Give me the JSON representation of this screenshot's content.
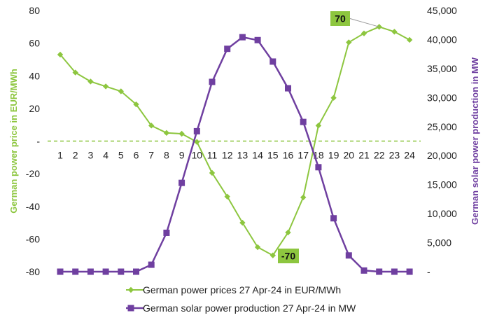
{
  "chart_data": {
    "type": "line",
    "categories": [
      "1",
      "2",
      "3",
      "4",
      "5",
      "6",
      "7",
      "8",
      "9",
      "10",
      "11",
      "12",
      "13",
      "14",
      "15",
      "16",
      "17",
      "18",
      "19",
      "20",
      "21",
      "22",
      "23",
      "24"
    ],
    "y_left": {
      "label": "German power price in EUR/MWh",
      "ylim": [
        -80,
        80
      ],
      "ticks": [
        80,
        60,
        40,
        20,
        0,
        -20,
        -40,
        -60,
        -80
      ],
      "tick_labels": [
        "80",
        "60",
        "40",
        "20",
        "-",
        "-20",
        "-40",
        "-60",
        "-80"
      ],
      "color": "#8dc63f"
    },
    "y_right": {
      "label": "German solar power production in MW",
      "ylim": [
        0,
        45000
      ],
      "ticks": [
        45000,
        40000,
        35000,
        30000,
        25000,
        20000,
        15000,
        10000,
        5000,
        0
      ],
      "tick_labels": [
        "45,000",
        "40,000",
        "35,000",
        "30,000",
        "25,000",
        "20,000",
        "15,000",
        "10,000",
        "5,000",
        "-"
      ],
      "color": "#6f3fa0"
    },
    "series": [
      {
        "name": "German power prices 27 Apr-24 in EUR/MWh",
        "axis": "left",
        "marker": "diamond",
        "color": "#8dc63f",
        "values": [
          53,
          42,
          36.5,
          33.5,
          30.5,
          22.5,
          9.5,
          5,
          4.5,
          -0.5,
          -19.5,
          -34,
          -50,
          -65,
          -70,
          -56,
          -34.5,
          9.5,
          26.5,
          60.5,
          66,
          70,
          67,
          62
        ]
      },
      {
        "name": "German solar power production 27 Apr-24 in MW",
        "axis": "right",
        "marker": "square",
        "color": "#6f3fa0",
        "values": [
          0,
          0,
          0,
          0,
          0,
          0,
          1200,
          6700,
          15300,
          24200,
          32700,
          38400,
          40400,
          39900,
          36200,
          31600,
          25800,
          18000,
          9200,
          2800,
          200,
          0,
          0,
          0
        ]
      }
    ],
    "zero_line": {
      "axis": "left",
      "value": 0,
      "style": "dashed",
      "color": "#8dc63f"
    },
    "annotations": [
      {
        "text": "70",
        "series": 0,
        "index": 21
      },
      {
        "text": "-70",
        "series": 0,
        "index": 14
      }
    ],
    "legend_position": "bottom",
    "grid": false
  }
}
